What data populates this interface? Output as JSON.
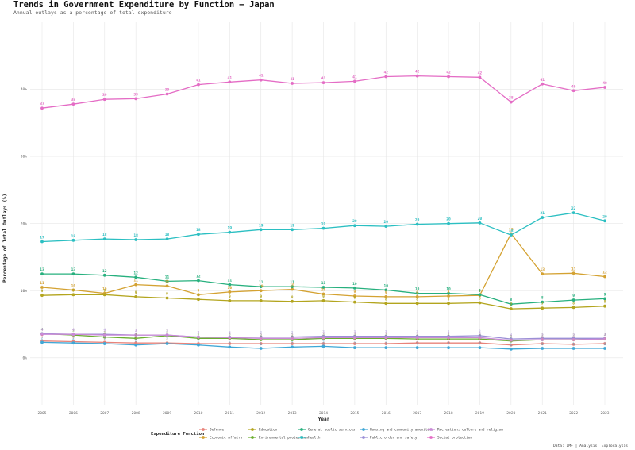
{
  "chart_data": {
    "type": "line",
    "title": "Trends in Government Expenditure by Function — Japan",
    "subtitle": "Annual outlays as a percentage of total expenditure",
    "xlabel": "Year",
    "ylabel": "Percentage of Total Outlays (%)",
    "caption": "Data: IMF | Analysis: Exploralysis",
    "legend_title": "Expenditure Function",
    "legend_position": "bottom",
    "grid": true,
    "ylim": [
      -7,
      50
    ],
    "yticks": [
      0,
      10,
      20,
      30,
      40
    ],
    "ytick_labels": [
      "0%",
      "10%",
      "20%",
      "30%",
      "40%"
    ],
    "x": [
      "2005",
      "2006",
      "2007",
      "2008",
      "2009",
      "2010",
      "2011",
      "2012",
      "2013",
      "2014",
      "2015",
      "2016",
      "2017",
      "2018",
      "2019",
      "2020",
      "2021",
      "2022",
      "2023"
    ],
    "series": [
      {
        "name": "Defence",
        "color": "#E8837A",
        "labeled": false,
        "values": [
          2.5,
          2.4,
          2.3,
          2.2,
          2.2,
          2.1,
          2.1,
          2.1,
          2.1,
          2.1,
          2.1,
          2.1,
          2.2,
          2.2,
          2.2,
          1.9,
          2.1,
          2.0,
          2.1
        ]
      },
      {
        "name": "Economic affairs",
        "color": "#D4A232",
        "labeled": true,
        "values": [
          10.5,
          10.1,
          9.6,
          10.9,
          10.7,
          9.4,
          9.8,
          10.0,
          10.2,
          9.5,
          9.2,
          9.1,
          9.1,
          9.2,
          9.3,
          18.5,
          12.5,
          12.6,
          12.1
        ]
      },
      {
        "name": "Education",
        "color": "#B3A51E",
        "labeled": true,
        "values": [
          9.3,
          9.4,
          9.4,
          9.1,
          8.9,
          8.7,
          8.5,
          8.5,
          8.4,
          8.5,
          8.3,
          8.1,
          8.1,
          8.1,
          8.2,
          7.3,
          7.4,
          7.5,
          7.7
        ]
      },
      {
        "name": "Environmental protection",
        "color": "#6AAE2F",
        "labeled": false,
        "values": [
          3.6,
          3.4,
          3.1,
          2.9,
          3.3,
          2.9,
          2.9,
          2.7,
          2.7,
          2.9,
          2.9,
          2.9,
          2.8,
          2.8,
          2.8,
          2.5,
          2.7,
          2.7,
          2.8
        ]
      },
      {
        "name": "General public services",
        "color": "#27B07E",
        "labeled": true,
        "values": [
          12.5,
          12.5,
          12.3,
          12.0,
          11.4,
          11.5,
          10.9,
          10.6,
          10.6,
          10.5,
          10.4,
          10.1,
          9.6,
          9.6,
          9.4,
          8.0,
          8.3,
          8.6,
          8.8
        ]
      },
      {
        "name": "Health",
        "color": "#2BBFC2",
        "labeled": true,
        "values": [
          17.3,
          17.5,
          17.7,
          17.6,
          17.7,
          18.4,
          18.7,
          19.1,
          19.1,
          19.3,
          19.7,
          19.6,
          19.9,
          20.0,
          20.1,
          18.3,
          20.9,
          21.6,
          20.4
        ]
      },
      {
        "name": "Housing and community amenities",
        "color": "#3FA7D6",
        "labeled": false,
        "values": [
          2.3,
          2.2,
          2.1,
          1.9,
          2.1,
          1.9,
          1.6,
          1.4,
          1.6,
          1.7,
          1.5,
          1.5,
          1.5,
          1.5,
          1.5,
          1.3,
          1.4,
          1.4,
          1.4
        ]
      },
      {
        "name": "Public order and safety",
        "color": "#9B8FD6",
        "labeled": false,
        "values": [
          3.6,
          3.5,
          3.5,
          3.4,
          3.4,
          3.1,
          3.1,
          3.1,
          3.1,
          3.2,
          3.2,
          3.2,
          3.2,
          3.2,
          3.3,
          2.8,
          2.9,
          2.9,
          2.9
        ]
      },
      {
        "name": "Recreation, culture and religion",
        "color": "#C98AD6",
        "labeled": false,
        "values": [
          3.5,
          3.5,
          3.4,
          3.4,
          3.4,
          3.1,
          3.0,
          2.9,
          2.9,
          3.0,
          3.0,
          3.0,
          3.0,
          3.0,
          3.0,
          2.6,
          2.7,
          2.7,
          2.8
        ]
      },
      {
        "name": "Social protection",
        "color": "#E46CC5",
        "labeled": true,
        "values": [
          37.2,
          37.8,
          38.5,
          38.6,
          39.3,
          40.7,
          41.1,
          41.4,
          40.9,
          41.0,
          41.2,
          41.9,
          42.0,
          41.9,
          41.8,
          38.1,
          40.8,
          39.8,
          40.3
        ]
      }
    ],
    "legend_rows": [
      [
        "Defence",
        "Education",
        "General public services",
        "Housing and community amenities",
        "Recreation, culture and religion"
      ],
      [
        "Economic affairs",
        "Environmental protection",
        "Health",
        "Public order and safety",
        "Social protection"
      ]
    ]
  }
}
